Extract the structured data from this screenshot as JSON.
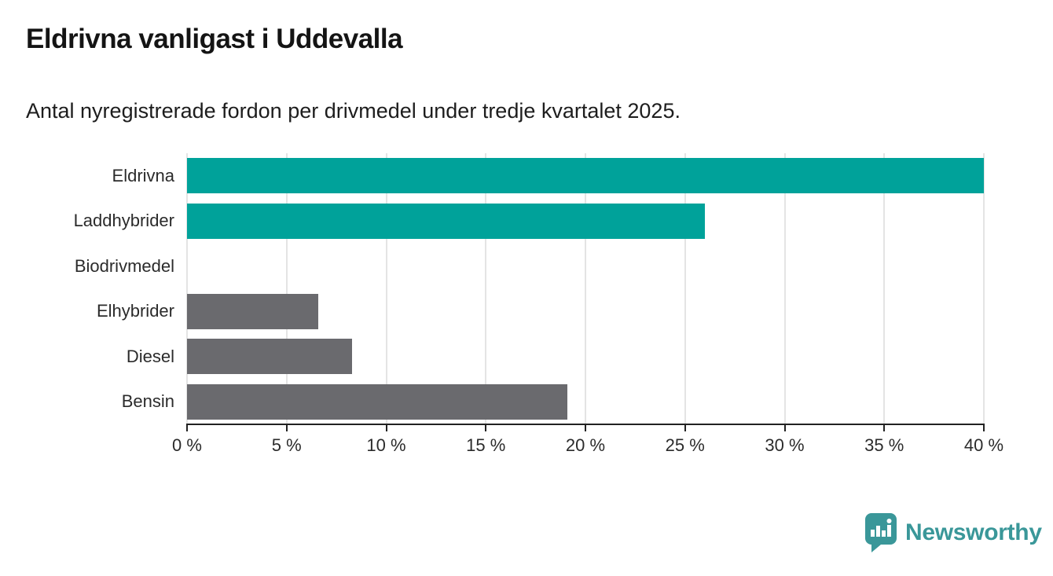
{
  "header": {
    "title": "Eldrivna vanligast i Uddevalla",
    "subtitle": "Antal nyregistrerade fordon per drivmedel under tredje kvartalet 2025."
  },
  "chart_data": {
    "type": "bar",
    "orientation": "horizontal",
    "title": "Eldrivna vanligast i Uddevalla",
    "subtitle": "Antal nyregistrerade fordon per drivmedel under tredje kvartalet 2025.",
    "categories": [
      "Eldrivna",
      "Laddhybrider",
      "Biodrivmedel",
      "Elhybrider",
      "Diesel",
      "Bensin"
    ],
    "values": [
      40,
      26,
      0,
      6.6,
      8.3,
      19.1
    ],
    "bar_colors": [
      "#00a29a",
      "#00a29a",
      "#6a6a6e",
      "#6a6a6e",
      "#6a6a6e",
      "#6a6a6e"
    ],
    "unit": "%",
    "xlim": [
      0,
      40
    ],
    "x_ticks": [
      0,
      5,
      10,
      15,
      20,
      25,
      30,
      35,
      40
    ],
    "x_tick_labels": [
      "0 %",
      "5 %",
      "10 %",
      "15 %",
      "20 %",
      "25 %",
      "30 %",
      "35 %",
      "40 %"
    ],
    "grid": true,
    "legend": false
  },
  "colors": {
    "accent_teal": "#00a29a",
    "neutral_gray": "#6a6a6e",
    "brand_teal": "#3a9799",
    "gridline": "#e4e4e4",
    "axis": "#222222"
  },
  "footer": {
    "brand": "Newsworthy"
  }
}
